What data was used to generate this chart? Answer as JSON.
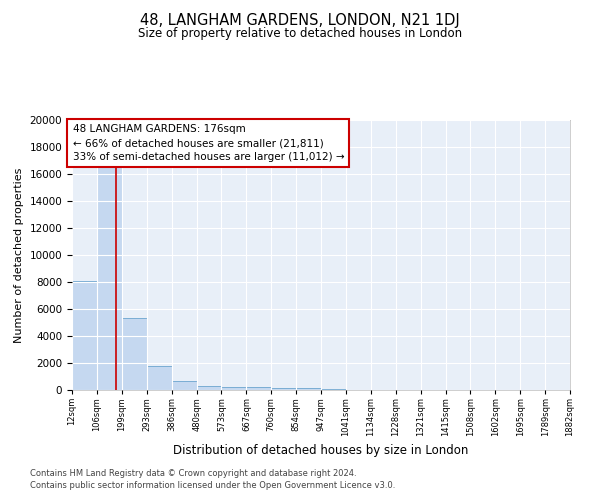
{
  "title": "48, LANGHAM GARDENS, LONDON, N21 1DJ",
  "subtitle": "Size of property relative to detached houses in London",
  "xlabel": "Distribution of detached houses by size in London",
  "ylabel": "Number of detached properties",
  "bar_color": "#c5d8f0",
  "bar_edge_color": "#7aadd4",
  "background_color": "#e8eff8",
  "grid_color": "#ffffff",
  "bin_edges": [
    12,
    106,
    199,
    293,
    386,
    480,
    573,
    667,
    760,
    854,
    947,
    1041,
    1134,
    1228,
    1321,
    1415,
    1508,
    1602,
    1695,
    1789,
    1882
  ],
  "bar_heights": [
    8100,
    16600,
    5300,
    1750,
    700,
    320,
    220,
    190,
    170,
    150,
    50,
    30,
    20,
    15,
    10,
    8,
    6,
    5,
    4,
    3
  ],
  "x_tick_labels": [
    "12sqm",
    "106sqm",
    "199sqm",
    "293sqm",
    "386sqm",
    "480sqm",
    "573sqm",
    "667sqm",
    "760sqm",
    "854sqm",
    "947sqm",
    "1041sqm",
    "1134sqm",
    "1228sqm",
    "1321sqm",
    "1415sqm",
    "1508sqm",
    "1602sqm",
    "1695sqm",
    "1789sqm",
    "1882sqm"
  ],
  "ylim": [
    0,
    20000
  ],
  "yticks": [
    0,
    2000,
    4000,
    6000,
    8000,
    10000,
    12000,
    14000,
    16000,
    18000,
    20000
  ],
  "property_size": 176,
  "red_line_color": "#cc0000",
  "annotation_text": "48 LANGHAM GARDENS: 176sqm\n← 66% of detached houses are smaller (21,811)\n33% of semi-detached houses are larger (11,012) →",
  "annotation_box_color": "#ffffff",
  "annotation_box_edge": "#cc0000",
  "footnote1": "Contains HM Land Registry data © Crown copyright and database right 2024.",
  "footnote2": "Contains public sector information licensed under the Open Government Licence v3.0."
}
